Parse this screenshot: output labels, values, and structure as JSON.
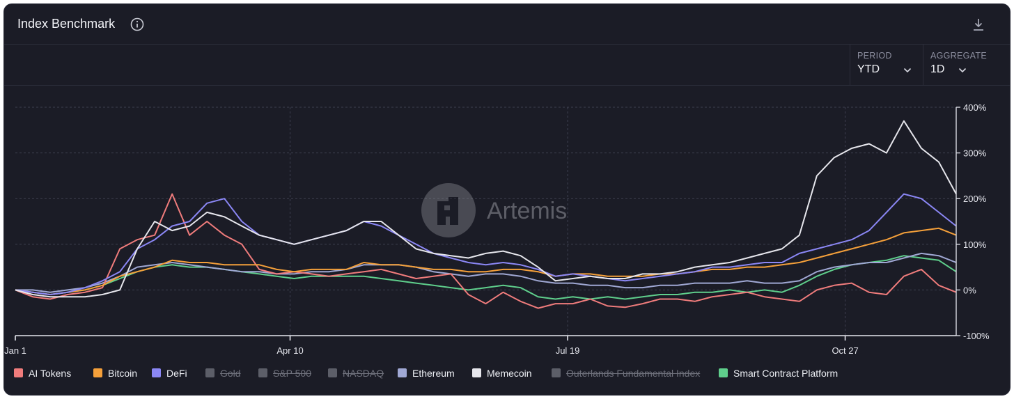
{
  "header": {
    "title": "Index Benchmark"
  },
  "controls": {
    "period": {
      "label": "PERIOD",
      "value": "YTD"
    },
    "aggregate": {
      "label": "AGGREGATE",
      "value": "1D"
    }
  },
  "watermark": "Artemis",
  "chart_data": {
    "type": "line",
    "x_labels": [
      "Jan 1",
      "Apr 10",
      "Jul 19",
      "Oct 27"
    ],
    "x_range": [
      "Jan 1",
      "Dec 6"
    ],
    "y_ticks": [
      "400%",
      "300%",
      "200%",
      "100%",
      "0%",
      "-100%"
    ],
    "ylim": [
      -100,
      400
    ],
    "grid": true,
    "legend_position": "bottom",
    "series": [
      {
        "name": "AI Tokens",
        "color": "#f07c7c",
        "active": true,
        "values": [
          0,
          -15,
          -20,
          -10,
          -5,
          5,
          90,
          110,
          120,
          210,
          120,
          150,
          120,
          100,
          45,
          35,
          40,
          35,
          30,
          35,
          40,
          45,
          35,
          25,
          30,
          35,
          -10,
          -30,
          -5,
          -25,
          -40,
          -30,
          -30,
          -20,
          -35,
          -38,
          -30,
          -20,
          -20,
          -25,
          -15,
          -10,
          -5,
          -15,
          -20,
          -25,
          0,
          10,
          15,
          -5,
          -10,
          30,
          45,
          10,
          -5
        ]
      },
      {
        "name": "Bitcoin",
        "color": "#f5a03a",
        "active": true,
        "values": [
          0,
          -5,
          -10,
          -5,
          0,
          10,
          30,
          40,
          50,
          65,
          60,
          60,
          55,
          55,
          55,
          45,
          40,
          45,
          45,
          45,
          60,
          55,
          55,
          50,
          45,
          45,
          40,
          40,
          45,
          45,
          40,
          30,
          35,
          35,
          30,
          30,
          30,
          35,
          35,
          40,
          45,
          45,
          50,
          50,
          55,
          60,
          70,
          80,
          90,
          100,
          110,
          125,
          130,
          135,
          120
        ]
      },
      {
        "name": "DeFi",
        "color": "#8b87f5",
        "active": true,
        "values": [
          0,
          -5,
          -10,
          -5,
          5,
          20,
          40,
          90,
          110,
          140,
          150,
          190,
          200,
          150,
          120,
          110,
          100,
          110,
          120,
          130,
          150,
          140,
          120,
          100,
          80,
          70,
          60,
          55,
          60,
          55,
          45,
          30,
          35,
          30,
          25,
          20,
          25,
          30,
          35,
          40,
          50,
          50,
          55,
          60,
          60,
          80,
          90,
          100,
          110,
          130,
          170,
          210,
          200,
          170,
          140
        ]
      },
      {
        "name": "Gold",
        "color": "#5c5e68",
        "active": false,
        "values": []
      },
      {
        "name": "S&P 500",
        "color": "#5c5e68",
        "active": false,
        "values": []
      },
      {
        "name": "NASDAQ",
        "color": "#5c5e68",
        "active": false,
        "values": []
      },
      {
        "name": "Ethereum",
        "color": "#a0a8d4",
        "active": true,
        "values": [
          0,
          0,
          -5,
          0,
          5,
          15,
          30,
          50,
          55,
          60,
          55,
          50,
          45,
          40,
          40,
          35,
          35,
          40,
          40,
          45,
          55,
          55,
          55,
          50,
          40,
          35,
          30,
          35,
          35,
          30,
          20,
          15,
          15,
          10,
          10,
          5,
          5,
          10,
          10,
          15,
          15,
          15,
          20,
          15,
          15,
          20,
          40,
          50,
          55,
          60,
          60,
          70,
          80,
          75,
          60
        ]
      },
      {
        "name": "Memecoin",
        "color": "#e6e6ec",
        "active": true,
        "values": [
          0,
          -10,
          -15,
          -15,
          -15,
          -10,
          0,
          90,
          150,
          130,
          140,
          170,
          160,
          140,
          120,
          110,
          100,
          110,
          120,
          130,
          150,
          150,
          120,
          90,
          80,
          75,
          70,
          80,
          85,
          75,
          50,
          20,
          25,
          30,
          25,
          25,
          35,
          35,
          40,
          50,
          55,
          60,
          70,
          80,
          90,
          120,
          250,
          290,
          310,
          320,
          300,
          370,
          310,
          280,
          210
        ]
      },
      {
        "name": "Outerlands Fundamental Index",
        "color": "#5c5e68",
        "active": false,
        "values": []
      },
      {
        "name": "Smart Contract Platform",
        "color": "#5fcf8c",
        "active": true,
        "values": [
          0,
          -5,
          -10,
          -5,
          0,
          10,
          25,
          40,
          50,
          55,
          50,
          50,
          45,
          40,
          35,
          30,
          25,
          30,
          30,
          30,
          30,
          25,
          20,
          15,
          10,
          5,
          0,
          5,
          10,
          5,
          -15,
          -20,
          -15,
          -20,
          -15,
          -20,
          -15,
          -10,
          -10,
          -5,
          -5,
          0,
          -5,
          0,
          -5,
          10,
          30,
          45,
          55,
          60,
          65,
          75,
          70,
          65,
          40
        ]
      }
    ]
  }
}
